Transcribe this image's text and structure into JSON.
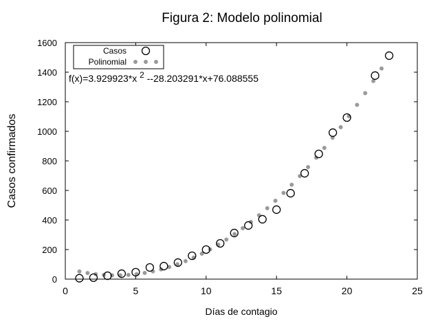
{
  "chart_data": {
    "type": "scatter",
    "title": "Figura 2: Modelo polinomial",
    "xlabel": "Días de contagio",
    "ylabel": "Casos confirmados",
    "xlim": [
      0,
      25
    ],
    "ylim": [
      0,
      1600
    ],
    "xticks": [
      0,
      5,
      10,
      15,
      20,
      25
    ],
    "yticks": [
      0,
      200,
      400,
      600,
      800,
      1000,
      1200,
      1400,
      1600
    ],
    "grid": false,
    "legend_position": "top-left",
    "annotation": "f(x)=3.929923*x 2 --28.203291*x+76.088555",
    "annotation_parts": {
      "pre": "f(x)=3.929923*x ",
      "sup": "2",
      "post": " --28.203291*x+76.088555"
    },
    "series": [
      {
        "name": "Casos",
        "marker": "open-circle",
        "color": "#000000",
        "x": [
          1,
          2,
          3,
          4,
          5,
          6,
          7,
          8,
          9,
          10,
          11,
          12,
          13,
          14,
          15,
          16,
          17,
          18,
          19,
          20,
          22,
          23
        ],
        "y": [
          6,
          10,
          23,
          37,
          47,
          79,
          88,
          112,
          158,
          200,
          242,
          312,
          363,
          405,
          470,
          581,
          716,
          847,
          991,
          1093,
          1377,
          1512
        ]
      },
      {
        "name": "Polinomial",
        "marker": "star",
        "color": "#999999",
        "fit": {
          "a2": 3.929923,
          "a1": -28.203291,
          "a0": 76.088555
        },
        "x_range": [
          1,
          23
        ],
        "x_step": 0.58
      }
    ]
  }
}
